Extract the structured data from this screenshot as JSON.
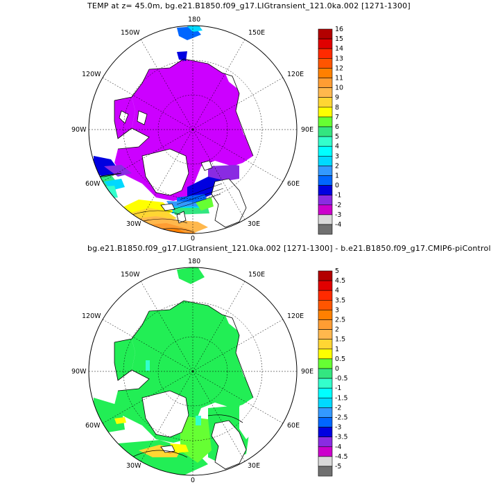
{
  "panels": [
    {
      "title": "TEMP at z=  45.0m, bg.e21.B1850.f09_g17.LIGtransient_121.0ka.002 [1271-1300]",
      "colorbar_labels": [
        "16",
        "15",
        "14",
        "13",
        "12",
        "11",
        "10",
        "9",
        "8",
        "7",
        "6",
        "5",
        "4",
        "3",
        "2",
        "1",
        "0",
        "-1",
        "-2",
        "-3",
        "-4"
      ]
    },
    {
      "title": "bg.e21.B1850.f09_g17.LIGtransient_121.0ka.002 [1271-1300] - b.e21.B1850.f09_g17.CMIP6-piControl",
      "colorbar_labels": [
        "5",
        "4.5",
        "4",
        "3.5",
        "3",
        "2.5",
        "2",
        "1.5",
        "1",
        "0.5",
        "0",
        "-0.5",
        "-1",
        "-1.5",
        "-2",
        "-2.5",
        "-3",
        "-3.5",
        "-4",
        "-4.5",
        "-5"
      ]
    }
  ],
  "lon_labels": {
    "top": "180",
    "bottom": "0",
    "l150w": "150W",
    "r150e": "150E",
    "l120w": "120W",
    "r120e": "120E",
    "l90w": "90W",
    "r90e": "90E",
    "l60w": "60W",
    "r60e": "60E",
    "l30w": "30W",
    "r30e": "30E"
  },
  "colors": {
    "ramp": [
      "#b30000",
      "#e00000",
      "#ff2a00",
      "#ff5500",
      "#ff8000",
      "#ff9d33",
      "#ffb84d",
      "#ffd633",
      "#ffff00",
      "#66ff33",
      "#33e680",
      "#33ffcc",
      "#00ffff",
      "#00d9ff",
      "#3399ff",
      "#0066ff",
      "#0000e0",
      "#8a2be2",
      "#cc00cc",
      "#d9d9d9",
      "#707070"
    ],
    "ocean_base": "#cc00ff",
    "diff_base": "#22ee55"
  }
}
